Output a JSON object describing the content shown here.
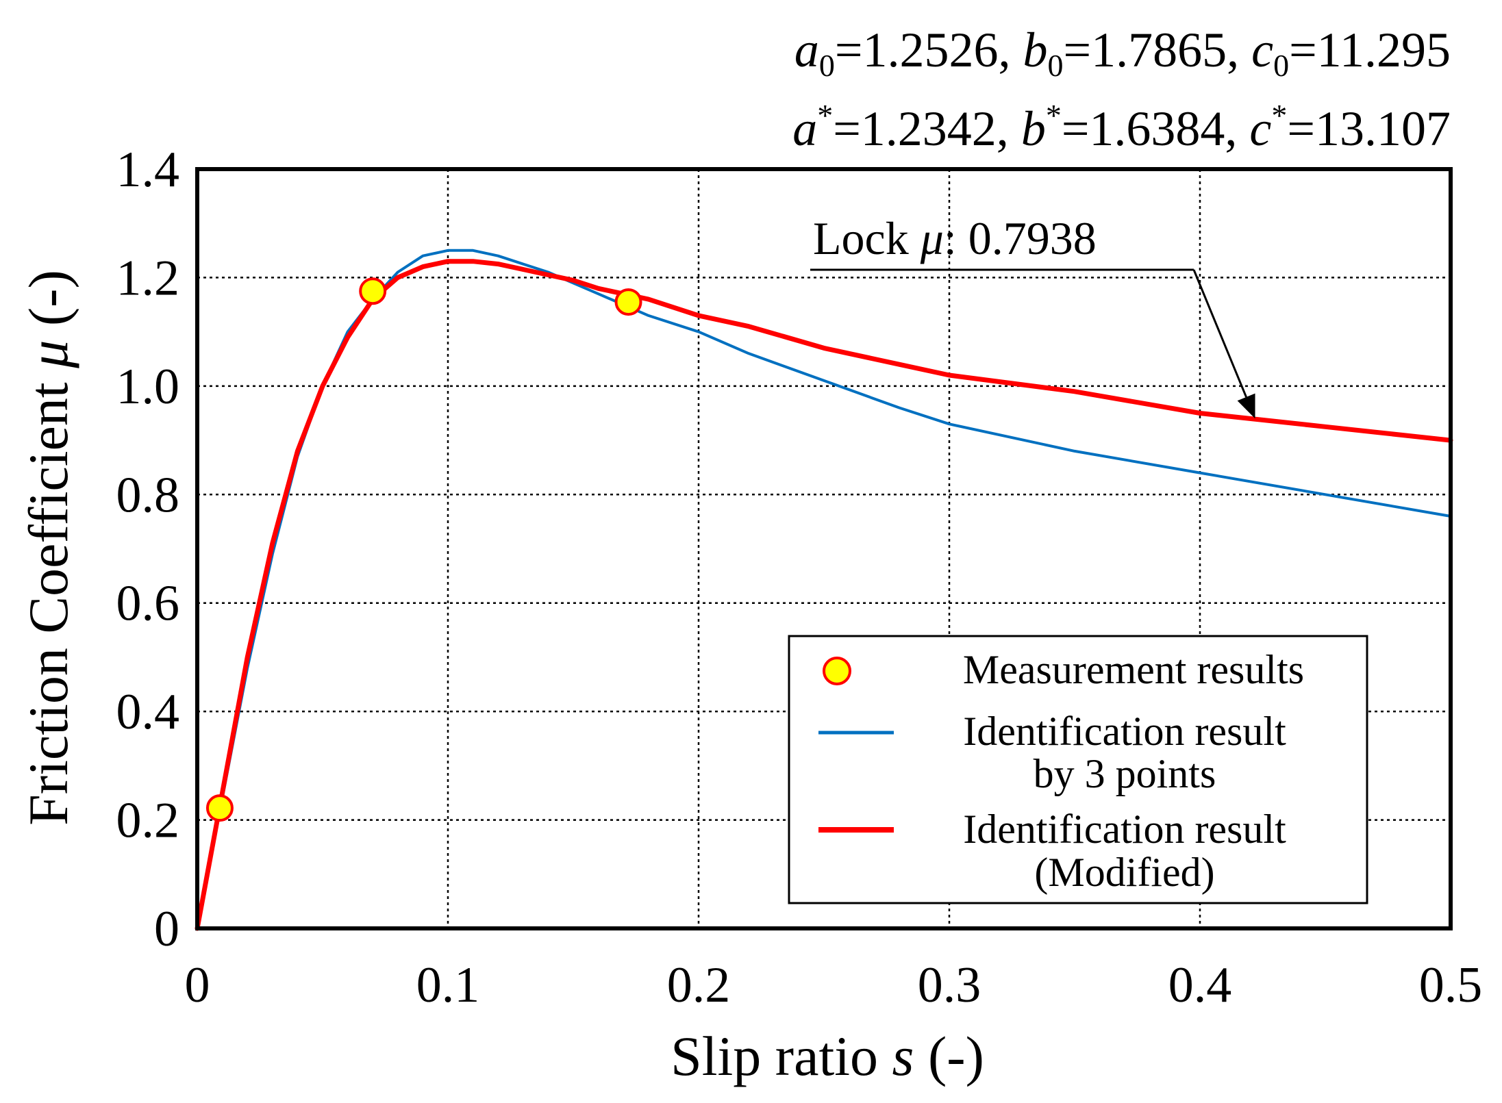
{
  "chart_data": {
    "type": "line",
    "title": "",
    "xlabel": "Slip ratio s (-)",
    "xlabel_parts": {
      "pre": "Slip ratio ",
      "var": "s",
      "post": " (-)"
    },
    "ylabel": "Friction Coefficient μ (-)",
    "ylabel_parts": {
      "pre": "Friction Coefficient ",
      "var": "μ",
      "post": " (-)"
    },
    "xlim": [
      0,
      0.5
    ],
    "ylim": [
      0,
      1.4
    ],
    "grid": true,
    "legend_position": "bottom-right",
    "x_ticks": [
      0,
      0.1,
      0.2,
      0.3,
      0.4,
      0.5
    ],
    "x_tick_labels": [
      "0",
      "0.1",
      "0.2",
      "0.3",
      "0.4",
      "0.5"
    ],
    "y_ticks": [
      0,
      0.2,
      0.4,
      0.6,
      0.8,
      1.0,
      1.2,
      1.4
    ],
    "y_tick_labels": [
      "0",
      "0.2",
      "0.4",
      "0.6",
      "0.8",
      "1.0",
      "1.2",
      "1.4"
    ],
    "params_line1": {
      "a_sym": "a",
      "a_sub": "0",
      "a_val": "=1.2526, ",
      "b_sym": "b",
      "b_sub": "0",
      "b_val": "=1.7865, ",
      "c_sym": "c",
      "c_sub": "0",
      "c_val": "=11.295"
    },
    "params_line2": {
      "a_sym": "a",
      "a_sup": "*",
      "a_val": "=1.2342, ",
      "b_sym": "b",
      "b_sup": "*",
      "b_val": "=1.6384, ",
      "c_sym": "c",
      "c_sup": "*",
      "c_val": "=13.107"
    },
    "annotation": {
      "pre": "Lock ",
      "var": "μ",
      "post": ": 0.7938",
      "arrow_target": {
        "x": 0.422,
        "y": 0.94
      }
    },
    "series": [
      {
        "name": "Measurement results",
        "type": "scatter",
        "color": "#FFFF00",
        "edge_color": "#FF0000",
        "x": [
          0.009,
          0.07,
          0.172
        ],
        "y": [
          0.222,
          1.175,
          1.155
        ]
      },
      {
        "name": "Identification result by 3 points",
        "type": "line",
        "color": "#0070C0",
        "x": [
          0,
          0.01,
          0.02,
          0.03,
          0.04,
          0.05,
          0.06,
          0.07,
          0.08,
          0.09,
          0.1,
          0.11,
          0.12,
          0.13,
          0.14,
          0.15,
          0.16,
          0.17,
          0.18,
          0.2,
          0.22,
          0.25,
          0.28,
          0.3,
          0.35,
          0.4,
          0.45,
          0.5
        ],
        "y": [
          0,
          0.24,
          0.48,
          0.69,
          0.87,
          1.0,
          1.1,
          1.16,
          1.21,
          1.24,
          1.25,
          1.25,
          1.24,
          1.225,
          1.21,
          1.19,
          1.17,
          1.15,
          1.13,
          1.1,
          1.06,
          1.01,
          0.96,
          0.93,
          0.88,
          0.84,
          0.8,
          0.76
        ]
      },
      {
        "name": "Identification result (Modified)",
        "type": "line",
        "color": "#FF0000",
        "x": [
          0,
          0.01,
          0.02,
          0.03,
          0.04,
          0.05,
          0.06,
          0.07,
          0.08,
          0.09,
          0.1,
          0.11,
          0.12,
          0.13,
          0.14,
          0.15,
          0.16,
          0.17,
          0.18,
          0.2,
          0.22,
          0.25,
          0.28,
          0.3,
          0.35,
          0.4,
          0.45,
          0.5
        ],
        "y": [
          0,
          0.25,
          0.5,
          0.71,
          0.88,
          1.0,
          1.09,
          1.16,
          1.2,
          1.22,
          1.23,
          1.23,
          1.225,
          1.215,
          1.205,
          1.195,
          1.18,
          1.17,
          1.16,
          1.13,
          1.11,
          1.07,
          1.04,
          1.02,
          0.99,
          0.95,
          0.925,
          0.9
        ]
      }
    ],
    "legend": [
      {
        "label": "Measurement results",
        "label2": ""
      },
      {
        "label": "Identification result",
        "label2": "by 3 points"
      },
      {
        "label": "Identification result",
        "label2": "(Modified)"
      }
    ]
  }
}
